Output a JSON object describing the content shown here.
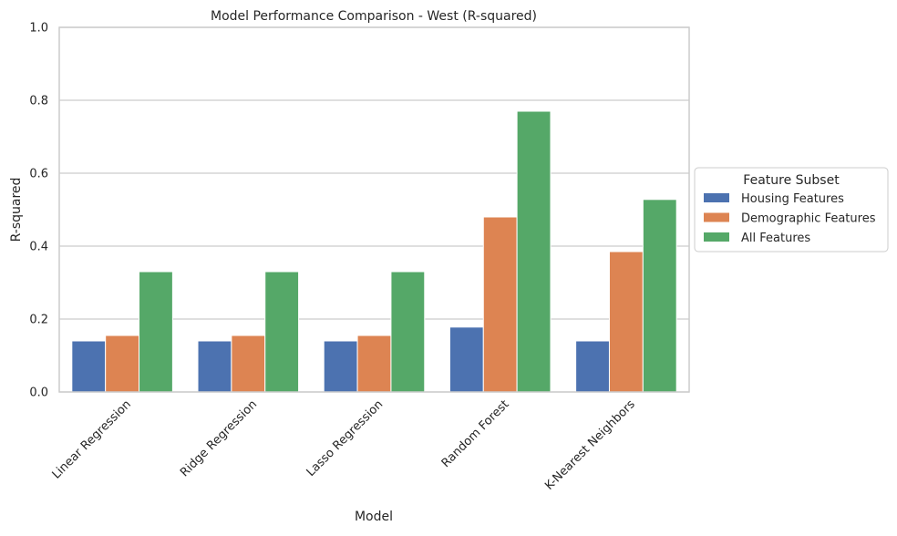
{
  "chart_data": {
    "type": "bar",
    "title": "Model Performance Comparison - West (R-squared)",
    "xlabel": "Model",
    "ylabel": "R-squared",
    "ylim": [
      0,
      1
    ],
    "yticks": [
      "0.0",
      "0.2",
      "0.4",
      "0.6",
      "0.8",
      "1.0"
    ],
    "grid": true,
    "legend": {
      "title": "Feature Subset",
      "placement": "center-right-outside"
    },
    "categories": [
      "Linear Regression",
      "Ridge Regression",
      "Lasso Regression",
      "Random Forest",
      "K-Nearest Neighbors"
    ],
    "series": [
      {
        "name": "Housing Features",
        "color": "#4c72b0",
        "values": [
          0.14,
          0.14,
          0.14,
          0.178,
          0.14
        ]
      },
      {
        "name": "Demographic Features",
        "color": "#dd8452",
        "values": [
          0.155,
          0.155,
          0.155,
          0.48,
          0.385
        ]
      },
      {
        "name": "All Features",
        "color": "#55a868",
        "values": [
          0.33,
          0.33,
          0.33,
          0.77,
          0.528
        ]
      }
    ]
  }
}
